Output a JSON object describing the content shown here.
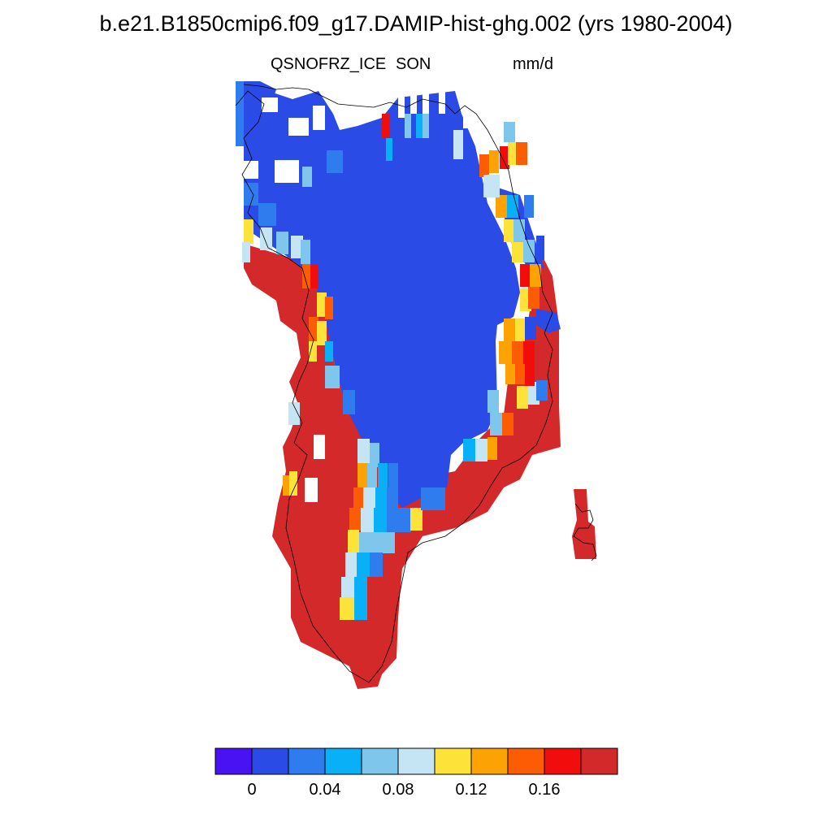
{
  "title": "b.e21.B1850cmip6.f09_g17.DAMIP-hist-ghg.002 (yrs 1980-2004)",
  "subtitle_left": "QSNOFRZ_ICE",
  "subtitle_center": "SON",
  "subtitle_right": "mm/d",
  "map": {
    "region": "Greenland",
    "projection": "polar stereographic",
    "coastline_color": "#000000"
  },
  "colorbar": {
    "colors": [
      "#4812f2",
      "#2b4be6",
      "#2f7cef",
      "#09b0f7",
      "#7ec6ec",
      "#c6e5f4",
      "#fde23a",
      "#fca303",
      "#fc5c04",
      "#f20d0d",
      "#d3292b"
    ],
    "tick_labels": [
      "0",
      "0.04",
      "0.08",
      "0.12",
      "0.16"
    ]
  }
}
